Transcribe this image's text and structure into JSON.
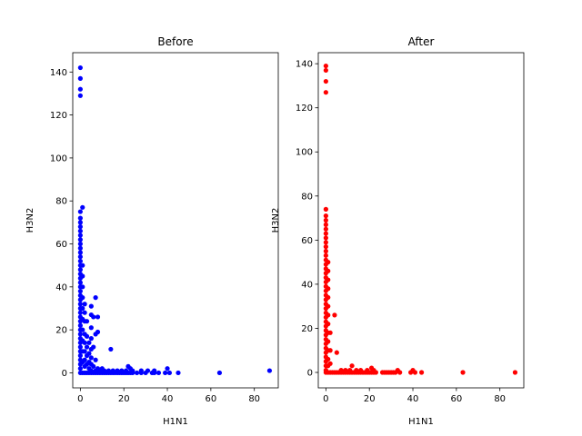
{
  "chart_data": [
    {
      "type": "scatter",
      "title": "Before",
      "xlabel": "H1N1",
      "ylabel": "H3N2",
      "color": "#0000ff",
      "xlim": [
        -3.5,
        91
      ],
      "ylim": [
        -7,
        149
      ],
      "xticks": [
        0,
        20,
        40,
        60,
        80
      ],
      "yticks": [
        0,
        20,
        40,
        60,
        80,
        100,
        120,
        140
      ],
      "points": [
        [
          0,
          142
        ],
        [
          0,
          137
        ],
        [
          0,
          132
        ],
        [
          0,
          129
        ],
        [
          1,
          77
        ],
        [
          0,
          75
        ],
        [
          0,
          72
        ],
        [
          0,
          70
        ],
        [
          0,
          68
        ],
        [
          0,
          66
        ],
        [
          0,
          64
        ],
        [
          0,
          62
        ],
        [
          0,
          60
        ],
        [
          0,
          58
        ],
        [
          0,
          56
        ],
        [
          0,
          54
        ],
        [
          0,
          52
        ],
        [
          0,
          50
        ],
        [
          0,
          48
        ],
        [
          0,
          46
        ],
        [
          0,
          44
        ],
        [
          0,
          42
        ],
        [
          0,
          40
        ],
        [
          0,
          38
        ],
        [
          0,
          36
        ],
        [
          0,
          34
        ],
        [
          0,
          32
        ],
        [
          0,
          30
        ],
        [
          0,
          28
        ],
        [
          0,
          26
        ],
        [
          0,
          24
        ],
        [
          0,
          22
        ],
        [
          0,
          20
        ],
        [
          0,
          18
        ],
        [
          0,
          16
        ],
        [
          0,
          14
        ],
        [
          0,
          12
        ],
        [
          0,
          10
        ],
        [
          0,
          8
        ],
        [
          0,
          6
        ],
        [
          0,
          4
        ],
        [
          0,
          2
        ],
        [
          0,
          0
        ],
        [
          1,
          50
        ],
        [
          1,
          45
        ],
        [
          1,
          40
        ],
        [
          1,
          35
        ],
        [
          1,
          30
        ],
        [
          1,
          25
        ],
        [
          1,
          20
        ],
        [
          1,
          15
        ],
        [
          1,
          10
        ],
        [
          1,
          5
        ],
        [
          1,
          0
        ],
        [
          2,
          32
        ],
        [
          2,
          28
        ],
        [
          2,
          24
        ],
        [
          2,
          18
        ],
        [
          2,
          14
        ],
        [
          2,
          10
        ],
        [
          2,
          6
        ],
        [
          2,
          3
        ],
        [
          2,
          0
        ],
        [
          3,
          24
        ],
        [
          3,
          17
        ],
        [
          3,
          12
        ],
        [
          3,
          8
        ],
        [
          3,
          4
        ],
        [
          3,
          0
        ],
        [
          4,
          14
        ],
        [
          4,
          9
        ],
        [
          4,
          5
        ],
        [
          4,
          2
        ],
        [
          4,
          0
        ],
        [
          5,
          31
        ],
        [
          5,
          27
        ],
        [
          5,
          21
        ],
        [
          5,
          16
        ],
        [
          5,
          11
        ],
        [
          5,
          7
        ],
        [
          5,
          4
        ],
        [
          5,
          1
        ],
        [
          5,
          0
        ],
        [
          6,
          26
        ],
        [
          6,
          12
        ],
        [
          6,
          3
        ],
        [
          6,
          0
        ],
        [
          7,
          35
        ],
        [
          7,
          18
        ],
        [
          7,
          6
        ],
        [
          7,
          1
        ],
        [
          7,
          0
        ],
        [
          8,
          26
        ],
        [
          8,
          19
        ],
        [
          8,
          2
        ],
        [
          8,
          0
        ],
        [
          9,
          1
        ],
        [
          9,
          0
        ],
        [
          10,
          2
        ],
        [
          10,
          0
        ],
        [
          11,
          1
        ],
        [
          11,
          0
        ],
        [
          12,
          0
        ],
        [
          13,
          1
        ],
        [
          13,
          0
        ],
        [
          14,
          11
        ],
        [
          14,
          0
        ],
        [
          15,
          1
        ],
        [
          15,
          0
        ],
        [
          16,
          0
        ],
        [
          17,
          1
        ],
        [
          17,
          0
        ],
        [
          18,
          0
        ],
        [
          19,
          1
        ],
        [
          19,
          0
        ],
        [
          20,
          0
        ],
        [
          21,
          1
        ],
        [
          21,
          0
        ],
        [
          22,
          3
        ],
        [
          22,
          0
        ],
        [
          23,
          2
        ],
        [
          23,
          0
        ],
        [
          24,
          1
        ],
        [
          24,
          0
        ],
        [
          26,
          0
        ],
        [
          28,
          1
        ],
        [
          28,
          0
        ],
        [
          30,
          0
        ],
        [
          31,
          1
        ],
        [
          33,
          0
        ],
        [
          34,
          1
        ],
        [
          34,
          0
        ],
        [
          36,
          0
        ],
        [
          39,
          0
        ],
        [
          40,
          2
        ],
        [
          41,
          0
        ],
        [
          45,
          0
        ],
        [
          64,
          0
        ],
        [
          87,
          1
        ]
      ]
    },
    {
      "type": "scatter",
      "title": "After",
      "xlabel": "H1N1",
      "ylabel": "H3N2",
      "color": "#ff0000",
      "xlim": [
        -3.5,
        91
      ],
      "ylim": [
        -7,
        145
      ],
      "xticks": [
        0,
        20,
        40,
        60,
        80
      ],
      "yticks": [
        0,
        20,
        40,
        60,
        80,
        100,
        120,
        140
      ],
      "points": [
        [
          0,
          139
        ],
        [
          0,
          137
        ],
        [
          0,
          132
        ],
        [
          0,
          127
        ],
        [
          0,
          74
        ],
        [
          0,
          71
        ],
        [
          0,
          69
        ],
        [
          0,
          67
        ],
        [
          0,
          65
        ],
        [
          0,
          63
        ],
        [
          0,
          61
        ],
        [
          0,
          59
        ],
        [
          0,
          57
        ],
        [
          0,
          55
        ],
        [
          0,
          53
        ],
        [
          0,
          51
        ],
        [
          0,
          49
        ],
        [
          0,
          47
        ],
        [
          0,
          45
        ],
        [
          0,
          43
        ],
        [
          0,
          41
        ],
        [
          0,
          39
        ],
        [
          0,
          37
        ],
        [
          0,
          35
        ],
        [
          0,
          33
        ],
        [
          0,
          31
        ],
        [
          0,
          29
        ],
        [
          0,
          27
        ],
        [
          0,
          25
        ],
        [
          0,
          23
        ],
        [
          0,
          21
        ],
        [
          0,
          19
        ],
        [
          0,
          17
        ],
        [
          0,
          15
        ],
        [
          0,
          13
        ],
        [
          0,
          11
        ],
        [
          0,
          9
        ],
        [
          0,
          7
        ],
        [
          0,
          5
        ],
        [
          0,
          3
        ],
        [
          0,
          1
        ],
        [
          0,
          0
        ],
        [
          1,
          50
        ],
        [
          1,
          46
        ],
        [
          1,
          42
        ],
        [
          1,
          38
        ],
        [
          1,
          34
        ],
        [
          1,
          30
        ],
        [
          1,
          26
        ],
        [
          1,
          22
        ],
        [
          1,
          18
        ],
        [
          1,
          14
        ],
        [
          1,
          10
        ],
        [
          1,
          6
        ],
        [
          1,
          3
        ],
        [
          1,
          0
        ],
        [
          2,
          18
        ],
        [
          2,
          10
        ],
        [
          2,
          4
        ],
        [
          2,
          0
        ],
        [
          3,
          0
        ],
        [
          4,
          26
        ],
        [
          4,
          0
        ],
        [
          5,
          9
        ],
        [
          5,
          0
        ],
        [
          6,
          0
        ],
        [
          7,
          1
        ],
        [
          7,
          0
        ],
        [
          8,
          0
        ],
        [
          9,
          1
        ],
        [
          9,
          0
        ],
        [
          10,
          0
        ],
        [
          11,
          1
        ],
        [
          11,
          0
        ],
        [
          12,
          3
        ],
        [
          12,
          0
        ],
        [
          13,
          0
        ],
        [
          14,
          1
        ],
        [
          14,
          0
        ],
        [
          15,
          0
        ],
        [
          16,
          1
        ],
        [
          16,
          0
        ],
        [
          17,
          0
        ],
        [
          18,
          0
        ],
        [
          19,
          1
        ],
        [
          19,
          0
        ],
        [
          20,
          0
        ],
        [
          21,
          2
        ],
        [
          21,
          0
        ],
        [
          22,
          1
        ],
        [
          22,
          0
        ],
        [
          23,
          0
        ],
        [
          26,
          0
        ],
        [
          27,
          0
        ],
        [
          28,
          0
        ],
        [
          29,
          0
        ],
        [
          30,
          0
        ],
        [
          31,
          0
        ],
        [
          32,
          0
        ],
        [
          33,
          1
        ],
        [
          34,
          0
        ],
        [
          39,
          0
        ],
        [
          40,
          1
        ],
        [
          41,
          0
        ],
        [
          44,
          0
        ],
        [
          63,
          0
        ],
        [
          87,
          0
        ]
      ]
    }
  ]
}
